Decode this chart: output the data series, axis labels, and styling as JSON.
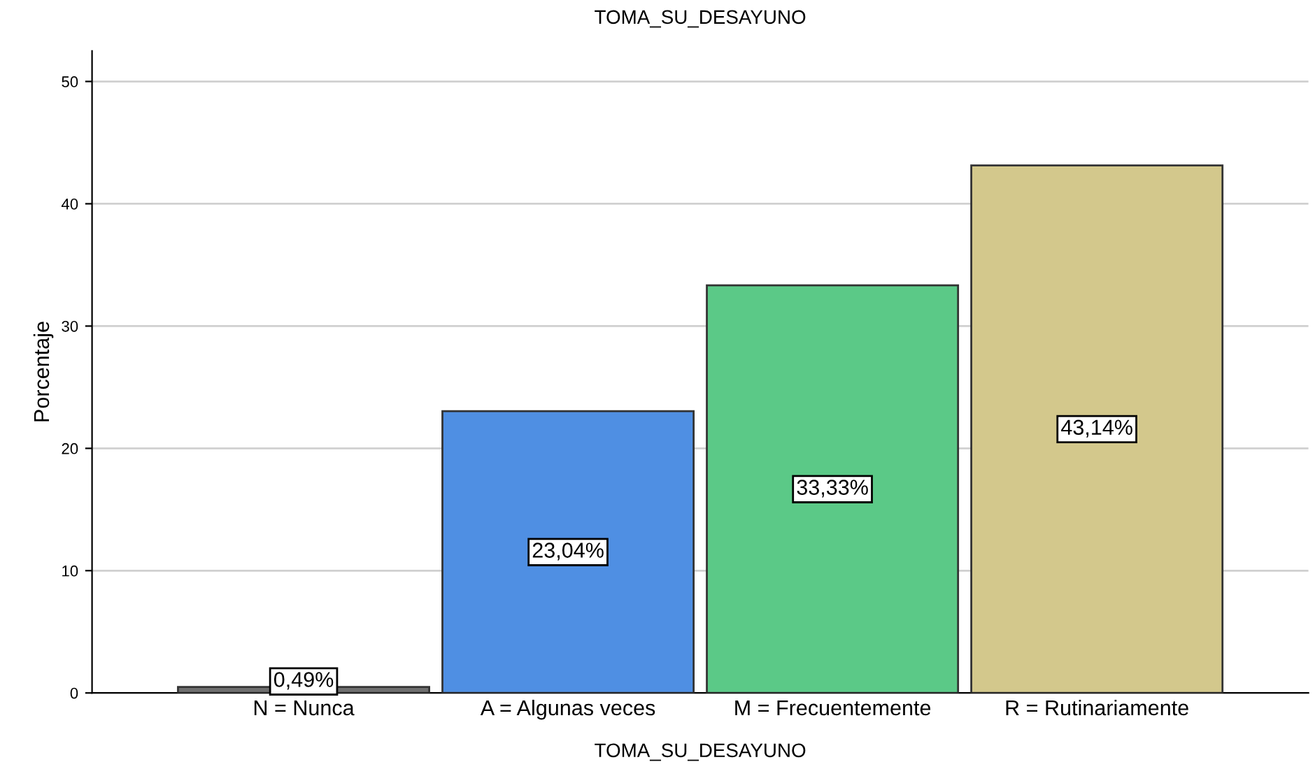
{
  "chart_data": {
    "type": "bar",
    "title": "TOMA_SU_DESAYUNO",
    "xlabel": "TOMA_SU_DESAYUNO",
    "ylabel": "Porcentaje",
    "categories": [
      "N = Nunca",
      "A = Algunas veces",
      "M = Frecuentemente",
      "R = Rutinariamente"
    ],
    "values": [
      0.49,
      23.04,
      33.33,
      43.14
    ],
    "value_labels": [
      "0,49%",
      "23,04%",
      "33,33%",
      "43,14%"
    ],
    "colors": [
      "#6f6f6f",
      "#4f8fe3",
      "#5bc987",
      "#d3c88c"
    ],
    "ylim": [
      0,
      52.5
    ],
    "yticks": [
      0,
      10,
      20,
      30,
      40,
      50
    ],
    "grid": "y"
  }
}
